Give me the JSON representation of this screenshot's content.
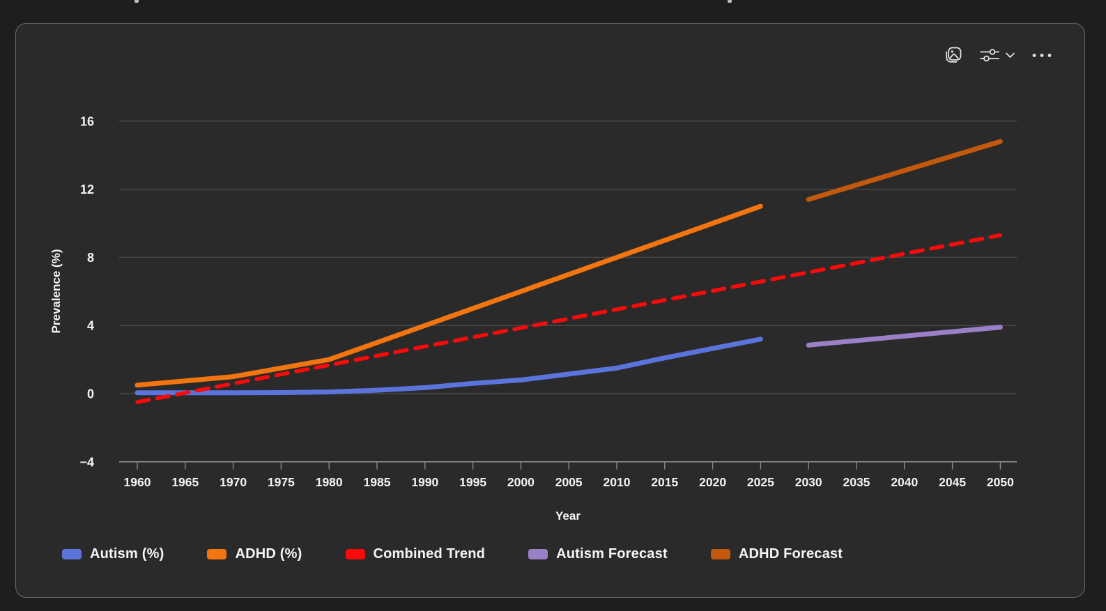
{
  "page": {
    "background": "#1e1e1f",
    "panel_background": "#2a2a2b",
    "panel_border": "#6b6b6b"
  },
  "toolbar": {
    "icons": [
      "image-icon",
      "sliders-icon",
      "chevron-down-icon",
      "ellipsis-icon"
    ],
    "icon_color": "#e4e4e4"
  },
  "chart_data": {
    "type": "line",
    "title": "",
    "xlabel": "Year",
    "ylabel": "Prevalence (%)",
    "xlim": [
      1958.1,
      2051.7
    ],
    "ylim": [
      -4,
      16
    ],
    "xticks": [
      1960,
      1965,
      1970,
      1975,
      1980,
      1985,
      1990,
      1995,
      2000,
      2005,
      2010,
      2015,
      2020,
      2025,
      2030,
      2035,
      2040,
      2045,
      2050
    ],
    "yticks": [
      -4,
      0,
      4,
      8,
      12,
      16
    ],
    "grid": true,
    "grid_color": "#474747",
    "axis_color": "#8a8a8a",
    "tick_label_color": "#f3f3f3",
    "legend_position": "bottom",
    "series": [
      {
        "name": "Autism (%)",
        "color": "#5b74db",
        "style": "solid",
        "points": [
          [
            1960,
            0.05
          ],
          [
            1965,
            0.05
          ],
          [
            1970,
            0.05
          ],
          [
            1975,
            0.06
          ],
          [
            1980,
            0.1
          ],
          [
            1985,
            0.2
          ],
          [
            1990,
            0.35
          ],
          [
            1995,
            0.6
          ],
          [
            2000,
            0.8
          ],
          [
            2005,
            1.15
          ],
          [
            2010,
            1.5
          ],
          [
            2015,
            2.1
          ],
          [
            2020,
            2.65
          ],
          [
            2025,
            3.2
          ]
        ]
      },
      {
        "name": "ADHD (%)",
        "color": "#f2750f",
        "style": "solid",
        "points": [
          [
            1960,
            0.5
          ],
          [
            1970,
            1.0
          ],
          [
            1980,
            2.0
          ],
          [
            2025,
            11.0
          ]
        ]
      },
      {
        "name": "Combined Trend",
        "color": "#fa0a0a",
        "style": "dashed",
        "points": [
          [
            1960,
            -0.5
          ],
          [
            2050,
            9.3
          ]
        ]
      },
      {
        "name": "Autism Forecast",
        "color": "#9b80c6",
        "style": "solid",
        "points": [
          [
            2030,
            2.85
          ],
          [
            2050,
            3.9
          ]
        ]
      },
      {
        "name": "ADHD Forecast",
        "color": "#c2590f",
        "style": "solid",
        "points": [
          [
            2030,
            11.4
          ],
          [
            2050,
            14.8
          ]
        ]
      }
    ]
  }
}
